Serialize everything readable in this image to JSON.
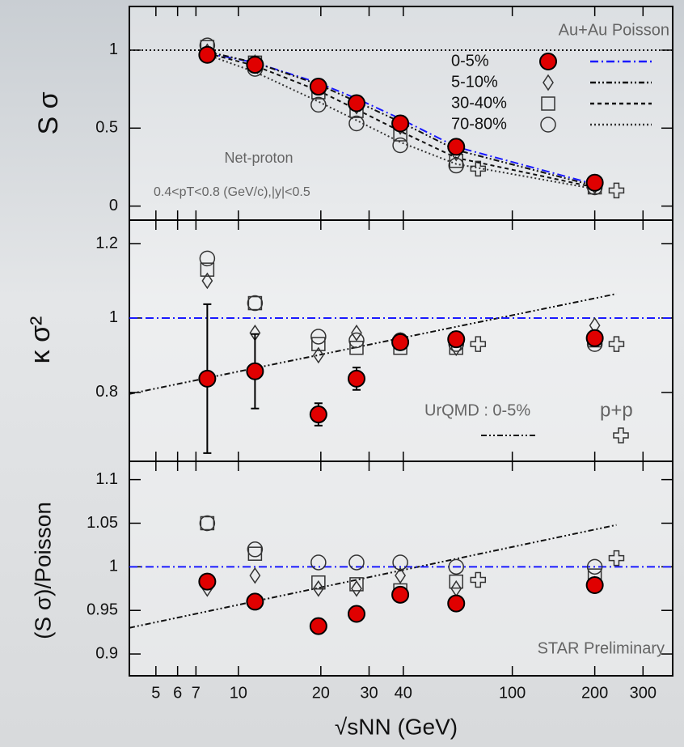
{
  "chart_data": [
    {
      "type": "scatter",
      "xscale": "log",
      "xlim": [
        4,
        385
      ],
      "ylim": [
        -0.09,
        1.28
      ],
      "yticks": [
        0,
        0.5,
        1
      ],
      "ylabel": "S σ",
      "header": "Au+Au Poisson",
      "annotations": [
        "Net-proton",
        "0.4<pT<0.8 (GeV/c),|y|<0.5"
      ],
      "series": [
        {
          "name": "0-5%",
          "marker": "circle-filled",
          "color": "#e00000",
          "x": [
            7.7,
            11.5,
            19.6,
            27,
            39,
            62.4,
            200
          ],
          "values": [
            0.97,
            0.906,
            0.766,
            0.66,
            0.53,
            0.38,
            0.15
          ]
        },
        {
          "name": "5-10%",
          "marker": "diamond",
          "color": "#333333",
          "x": [
            7.7,
            11.5,
            19.6,
            27,
            39,
            62.4,
            200
          ],
          "values": [
            0.99,
            0.92,
            0.77,
            0.64,
            0.51,
            0.34,
            0.13
          ]
        },
        {
          "name": "30-40%",
          "marker": "square",
          "color": "#333333",
          "x": [
            7.7,
            11.5,
            19.6,
            27,
            39,
            62.4,
            200
          ],
          "values": [
            1.02,
            0.92,
            0.73,
            0.61,
            0.46,
            0.29,
            0.12
          ]
        },
        {
          "name": "70-80%",
          "marker": "circle",
          "color": "#333333",
          "x": [
            7.7,
            11.5,
            19.6,
            27,
            39,
            62.4,
            200
          ],
          "values": [
            1.03,
            0.88,
            0.65,
            0.53,
            0.39,
            0.26,
            0.12
          ]
        },
        {
          "marker": "cross",
          "color": "#333333",
          "x": [
            75,
            240
          ],
          "values": [
            0.24,
            0.1
          ]
        }
      ],
      "lines": [
        {
          "style": "dashdot",
          "color": "#1a1aff",
          "x": [
            7.7,
            11.5,
            19.6,
            27,
            39,
            62.4,
            200
          ],
          "values": [
            0.98,
            0.92,
            0.79,
            0.69,
            0.56,
            0.38,
            0.14
          ]
        },
        {
          "style": "dashdotdot",
          "color": "#111111",
          "x": [
            7.7,
            11.5,
            19.6,
            27,
            39,
            62.4,
            200
          ],
          "values": [
            0.99,
            0.92,
            0.78,
            0.67,
            0.54,
            0.36,
            0.13
          ]
        },
        {
          "style": "dash",
          "color": "#111111",
          "x": [
            7.7,
            11.5,
            19.6,
            27,
            39,
            62.4,
            200
          ],
          "values": [
            0.98,
            0.9,
            0.74,
            0.62,
            0.48,
            0.31,
            0.12
          ]
        },
        {
          "style": "dot",
          "color": "#333333",
          "x": [
            7.7,
            11.5,
            19.6,
            27,
            39,
            62.4,
            200
          ],
          "values": [
            0.97,
            0.86,
            0.67,
            0.55,
            0.41,
            0.27,
            0.11
          ]
        },
        {
          "style": "dot",
          "color": "#111111",
          "x": [
            4,
            385
          ],
          "values": [
            1,
            1
          ]
        }
      ]
    },
    {
      "type": "scatter",
      "xscale": "log",
      "xlim": [
        4,
        385
      ],
      "ylim": [
        0.615,
        1.263
      ],
      "yticks": [
        0.8,
        1,
        1.2
      ],
      "ylabel": "κ σ²",
      "series": [
        {
          "name": "0-5%",
          "marker": "circle-filled",
          "color": "#e00000",
          "x": [
            7.7,
            11.5,
            19.6,
            27,
            39,
            62.4,
            200
          ],
          "values": [
            0.837,
            0.857,
            0.741,
            0.837,
            0.935,
            0.943,
            0.946
          ],
          "errors": [
            0.2,
            0.1,
            0.03,
            0.03,
            0.02,
            0.02,
            0.02
          ]
        },
        {
          "name": "5-10%",
          "marker": "diamond",
          "color": "#333333",
          "x": [
            7.7,
            11.5,
            19.6,
            27,
            39,
            62.4,
            200
          ],
          "values": [
            1.1,
            0.96,
            0.9,
            0.96,
            0.94,
            0.92,
            0.98
          ]
        },
        {
          "name": "30-40%",
          "marker": "square",
          "color": "#333333",
          "x": [
            7.7,
            11.5,
            19.6,
            27,
            39,
            62.4,
            200
          ],
          "values": [
            1.13,
            1.04,
            0.93,
            0.92,
            0.92,
            0.92,
            0.94
          ]
        },
        {
          "name": "70-80%",
          "marker": "circle",
          "color": "#333333",
          "x": [
            7.7,
            11.5,
            19.6,
            27,
            39,
            62.4,
            200
          ],
          "values": [
            1.16,
            1.04,
            0.95,
            0.94,
            0.94,
            0.93,
            0.93
          ]
        },
        {
          "name": "p+p",
          "marker": "cross",
          "color": "#333333",
          "x": [
            75,
            240
          ],
          "values": [
            0.93,
            0.93
          ]
        }
      ],
      "lines": [
        {
          "name": "UrQMD : 0-5%",
          "style": "dashdotdot",
          "color": "#111111",
          "x": [
            4,
            240
          ],
          "values": [
            0.796,
            1.065
          ]
        },
        {
          "style": "dashdot",
          "color": "#1a1aff",
          "x": [
            4,
            385
          ],
          "values": [
            1,
            1
          ]
        }
      ]
    },
    {
      "type": "scatter",
      "xscale": "log",
      "xlim": [
        4,
        385
      ],
      "ylim": [
        0.875,
        1.121
      ],
      "yticks": [
        0.9,
        0.95,
        1,
        1.05,
        1.1
      ],
      "xticks": [
        5,
        6,
        7,
        10,
        20,
        30,
        40,
        100,
        200,
        300
      ],
      "ylabel": "(S σ)/Poisson",
      "xlabel": "√sNN (GeV)",
      "annotations": [
        "STAR Preliminary"
      ],
      "series": [
        {
          "name": "0-5%",
          "marker": "circle-filled",
          "color": "#e00000",
          "x": [
            7.7,
            11.5,
            19.6,
            27,
            39,
            62.4,
            200
          ],
          "values": [
            0.983,
            0.96,
            0.932,
            0.946,
            0.968,
            0.958,
            0.979
          ]
        },
        {
          "name": "5-10%",
          "marker": "diamond",
          "color": "#333333",
          "x": [
            7.7,
            11.5,
            19.6,
            27,
            39,
            62.4,
            200
          ],
          "values": [
            0.975,
            0.99,
            0.975,
            0.975,
            0.99,
            0.975,
            0.98
          ]
        },
        {
          "name": "30-40%",
          "marker": "square",
          "color": "#333333",
          "x": [
            7.7,
            11.5,
            19.6,
            27,
            39,
            62.4,
            200
          ],
          "values": [
            1.05,
            1.015,
            0.982,
            0.98,
            0.973,
            0.983,
            0.99
          ]
        },
        {
          "name": "70-80%",
          "marker": "circle",
          "color": "#333333",
          "x": [
            7.7,
            11.5,
            19.6,
            27,
            39,
            62.4,
            200
          ],
          "values": [
            1.05,
            1.02,
            1.005,
            1.005,
            1.005,
            1,
            1
          ]
        },
        {
          "name": "p+p",
          "marker": "cross",
          "color": "#333333",
          "x": [
            75,
            240
          ],
          "values": [
            0.985,
            1.01
          ]
        }
      ],
      "lines": [
        {
          "style": "dashdotdot",
          "color": "#111111",
          "x": [
            4,
            240
          ],
          "values": [
            0.93,
            1.048
          ]
        },
        {
          "style": "dashdot",
          "color": "#1a1aff",
          "x": [
            4,
            385
          ],
          "values": [
            1,
            1
          ]
        }
      ]
    }
  ]
}
